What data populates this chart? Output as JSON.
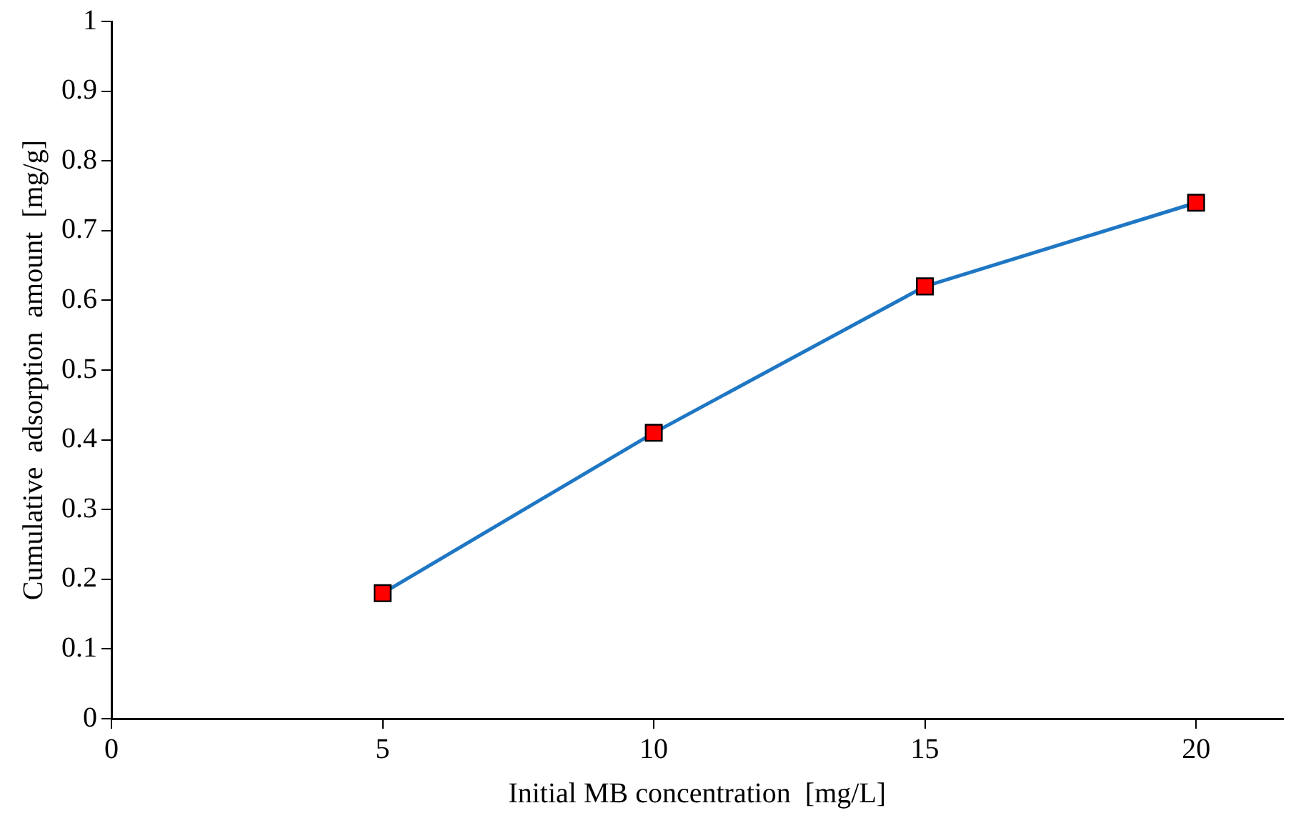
{
  "chart_data": {
    "type": "line",
    "xlabel": "Initial MB concentration  [mg/L]",
    "ylabel": "Cumulative  adsorption  amount  [mg/g]",
    "x": [
      5,
      10,
      15,
      20
    ],
    "series": [
      {
        "color": "#1f77c4",
        "colors": [
          "#ff0000",
          "#ff0000",
          "#ff0000",
          "#ff0000"
        ],
        "values": [
          0.18,
          0.41,
          0.62,
          0.74
        ]
      }
    ],
    "xlim": [
      0,
      21.6
    ],
    "xticks": [
      0,
      5,
      10,
      15,
      20
    ],
    "ylim": [
      0,
      1
    ],
    "yticks": [
      0,
      0.1,
      0.2,
      0.3,
      0.4,
      0.5,
      0.6,
      0.7,
      0.8,
      0.9,
      1
    ],
    "marker": "square",
    "line_style": "solid",
    "grid": false,
    "legend": false
  }
}
